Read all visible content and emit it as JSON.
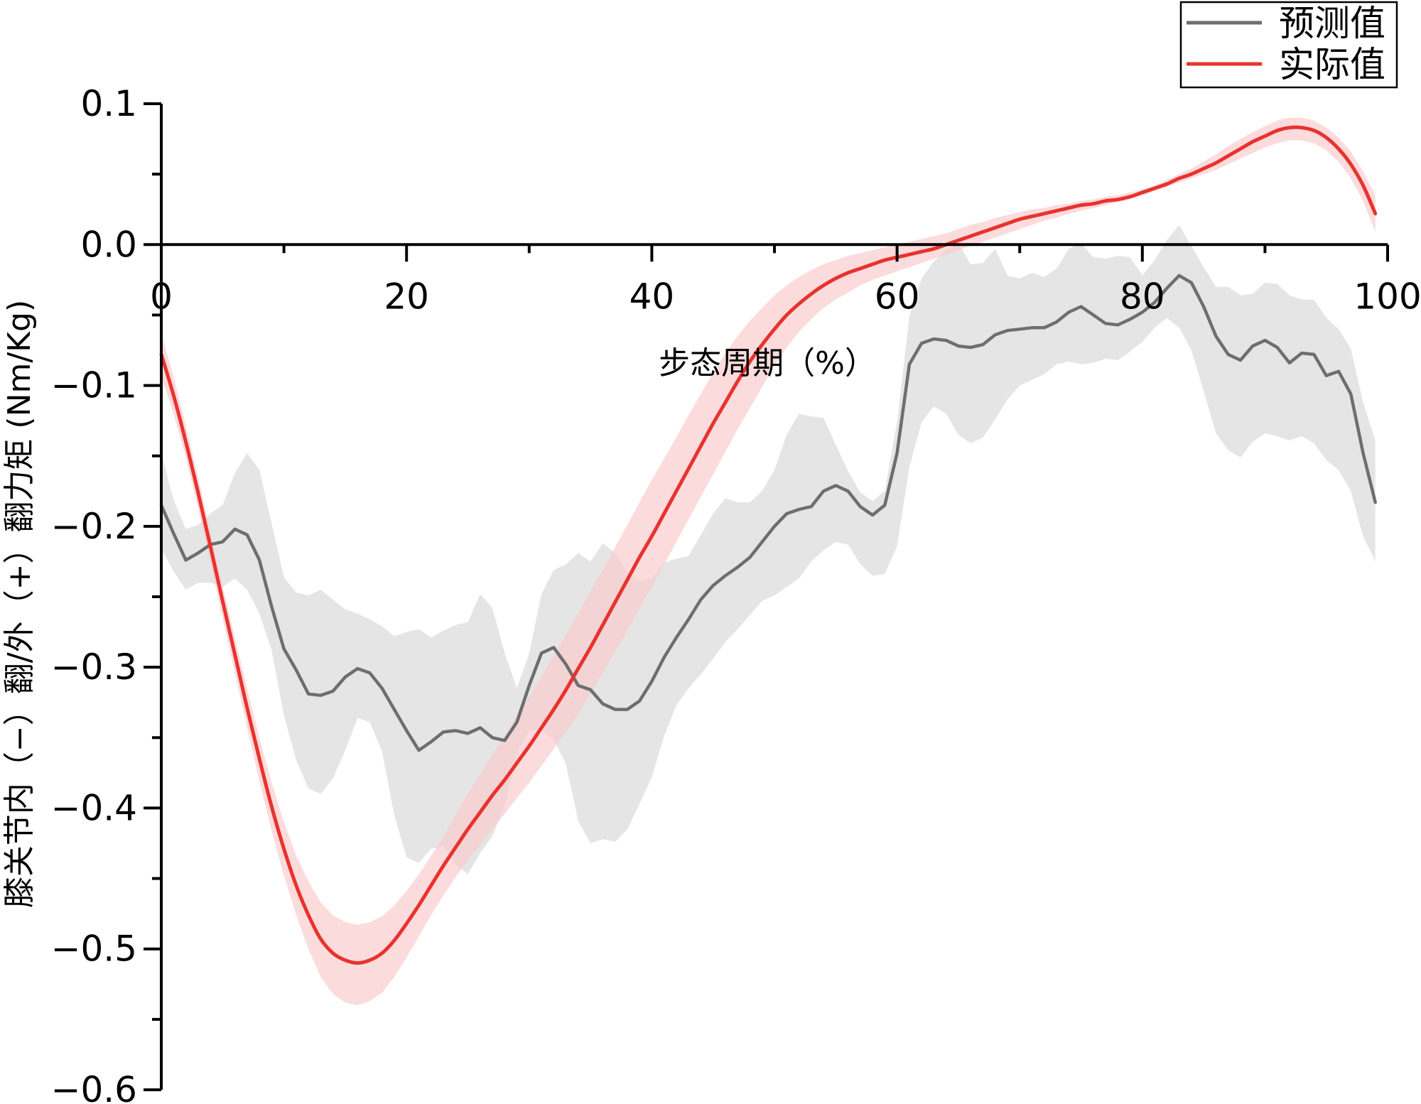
{
  "chart_data": {
    "type": "line",
    "xlabel": "步态周期（%）",
    "ylabel": "膝关节内（−）翻/外（+）翻力矩 (Nm/Kg)",
    "xlim": [
      0,
      100
    ],
    "ylim": [
      -0.6,
      0.1
    ],
    "xticks": [
      0,
      20,
      40,
      60,
      80,
      100
    ],
    "xtick_labels": [
      "0",
      "20",
      "40",
      "60",
      "80",
      "100"
    ],
    "yticks": [
      0.1,
      0.0,
      -0.1,
      -0.2,
      -0.3,
      -0.4,
      -0.5,
      -0.6
    ],
    "ytick_labels": [
      "0.1",
      "0.0",
      "−0.1",
      "−0.2",
      "−0.3",
      "−0.4",
      "−0.5",
      "−0.6"
    ],
    "grid": false,
    "legend_position": "top-right",
    "series": [
      {
        "name": "预测值",
        "color": "#6e6e6e",
        "band_color": "#dcdcdc",
        "x": [
          0,
          1,
          2,
          3,
          4,
          5,
          6,
          7,
          8,
          9,
          10,
          11,
          12,
          13,
          14,
          15,
          16,
          17,
          18,
          19,
          20,
          21,
          22,
          23,
          24,
          25,
          26,
          27,
          28,
          29,
          30,
          31,
          32,
          33,
          34,
          35,
          36,
          37,
          38,
          39,
          40,
          41,
          42,
          43,
          44,
          45,
          46,
          47,
          48,
          49,
          50,
          51,
          52,
          53,
          54,
          55,
          56,
          57,
          58,
          59,
          60,
          61,
          62,
          63,
          64,
          65,
          66,
          67,
          68,
          69,
          70,
          71,
          72,
          73,
          74,
          75,
          76,
          77,
          78,
          79,
          80,
          81,
          82,
          83,
          84,
          85,
          86,
          87,
          88,
          89,
          90,
          91,
          92,
          93,
          94,
          95,
          96,
          97,
          98,
          99
        ],
        "values": [
          -0.185,
          -0.205,
          -0.224,
          -0.219,
          -0.213,
          -0.211,
          -0.202,
          -0.206,
          -0.224,
          -0.257,
          -0.287,
          -0.302,
          -0.319,
          -0.32,
          -0.317,
          -0.307,
          -0.301,
          -0.304,
          -0.315,
          -0.33,
          -0.345,
          -0.359,
          -0.353,
          -0.346,
          -0.345,
          -0.347,
          -0.343,
          -0.35,
          -0.352,
          -0.339,
          -0.313,
          -0.29,
          -0.286,
          -0.298,
          -0.313,
          -0.316,
          -0.326,
          -0.33,
          -0.33,
          -0.324,
          -0.31,
          -0.293,
          -0.279,
          -0.266,
          -0.252,
          -0.242,
          -0.235,
          -0.229,
          -0.222,
          -0.211,
          -0.2,
          -0.191,
          -0.188,
          -0.186,
          -0.175,
          -0.171,
          -0.175,
          -0.186,
          -0.192,
          -0.185,
          -0.148,
          -0.085,
          -0.07,
          -0.067,
          -0.068,
          -0.072,
          -0.073,
          -0.071,
          -0.064,
          -0.061,
          -0.06,
          -0.059,
          -0.059,
          -0.055,
          -0.048,
          -0.044,
          -0.05,
          -0.056,
          -0.057,
          -0.053,
          -0.048,
          -0.041,
          -0.031,
          -0.022,
          -0.027,
          -0.044,
          -0.065,
          -0.078,
          -0.082,
          -0.072,
          -0.068,
          -0.073,
          -0.084,
          -0.077,
          -0.078,
          -0.093,
          -0.09,
          -0.106,
          -0.148,
          -0.183
        ],
        "upper": [
          -0.148,
          -0.181,
          -0.202,
          -0.199,
          -0.191,
          -0.185,
          -0.162,
          -0.148,
          -0.16,
          -0.198,
          -0.236,
          -0.247,
          -0.249,
          -0.245,
          -0.252,
          -0.259,
          -0.262,
          -0.266,
          -0.271,
          -0.278,
          -0.275,
          -0.273,
          -0.279,
          -0.274,
          -0.27,
          -0.268,
          -0.248,
          -0.258,
          -0.29,
          -0.315,
          -0.29,
          -0.248,
          -0.231,
          -0.227,
          -0.219,
          -0.225,
          -0.212,
          -0.219,
          -0.233,
          -0.239,
          -0.237,
          -0.226,
          -0.223,
          -0.221,
          -0.206,
          -0.191,
          -0.18,
          -0.183,
          -0.183,
          -0.175,
          -0.16,
          -0.135,
          -0.12,
          -0.122,
          -0.123,
          -0.142,
          -0.161,
          -0.176,
          -0.182,
          -0.175,
          -0.126,
          -0.051,
          -0.024,
          -0.012,
          -0.004,
          0.001,
          -0.014,
          -0.013,
          -0.003,
          -0.022,
          -0.024,
          -0.02,
          -0.023,
          -0.017,
          -0.003,
          0.001,
          -0.009,
          -0.01,
          -0.008,
          -0.009,
          -0.022,
          -0.011,
          0.003,
          0.014,
          -0.001,
          -0.016,
          -0.03,
          -0.03,
          -0.036,
          -0.035,
          -0.027,
          -0.028,
          -0.036,
          -0.039,
          -0.039,
          -0.052,
          -0.06,
          -0.074,
          -0.112,
          -0.139
        ],
        "lower": [
          -0.216,
          -0.232,
          -0.245,
          -0.24,
          -0.24,
          -0.243,
          -0.237,
          -0.245,
          -0.262,
          -0.288,
          -0.334,
          -0.366,
          -0.386,
          -0.39,
          -0.379,
          -0.359,
          -0.336,
          -0.339,
          -0.36,
          -0.405,
          -0.435,
          -0.439,
          -0.429,
          -0.427,
          -0.44,
          -0.447,
          -0.432,
          -0.42,
          -0.399,
          -0.361,
          -0.345,
          -0.345,
          -0.351,
          -0.369,
          -0.409,
          -0.425,
          -0.422,
          -0.424,
          -0.415,
          -0.397,
          -0.378,
          -0.349,
          -0.327,
          -0.315,
          -0.305,
          -0.294,
          -0.282,
          -0.273,
          -0.263,
          -0.253,
          -0.249,
          -0.243,
          -0.237,
          -0.225,
          -0.217,
          -0.211,
          -0.213,
          -0.227,
          -0.235,
          -0.234,
          -0.214,
          -0.158,
          -0.126,
          -0.115,
          -0.12,
          -0.135,
          -0.141,
          -0.137,
          -0.124,
          -0.11,
          -0.1,
          -0.096,
          -0.092,
          -0.085,
          -0.083,
          -0.085,
          -0.084,
          -0.081,
          -0.082,
          -0.076,
          -0.069,
          -0.059,
          -0.052,
          -0.059,
          -0.075,
          -0.104,
          -0.134,
          -0.146,
          -0.151,
          -0.14,
          -0.134,
          -0.136,
          -0.139,
          -0.136,
          -0.141,
          -0.153,
          -0.16,
          -0.175,
          -0.207,
          -0.225
        ]
      },
      {
        "name": "实际值",
        "color": "#e8322f",
        "band_color": "#f9cccc",
        "x": [
          0,
          1,
          2,
          3,
          4,
          5,
          6,
          7,
          8,
          9,
          10,
          11,
          12,
          13,
          14,
          15,
          16,
          17,
          18,
          19,
          20,
          21,
          22,
          23,
          24,
          25,
          26,
          27,
          28,
          29,
          30,
          31,
          32,
          33,
          34,
          35,
          36,
          37,
          38,
          39,
          40,
          41,
          42,
          43,
          44,
          45,
          46,
          47,
          48,
          49,
          50,
          51,
          52,
          53,
          54,
          55,
          56,
          57,
          58,
          59,
          60,
          61,
          62,
          63,
          64,
          65,
          66,
          67,
          68,
          69,
          70,
          71,
          72,
          73,
          74,
          75,
          76,
          77,
          78,
          79,
          80,
          81,
          82,
          83,
          84,
          85,
          86,
          87,
          88,
          89,
          90,
          91,
          92,
          93,
          94,
          95,
          96,
          97,
          98,
          99
        ],
        "values": [
          -0.078,
          -0.107,
          -0.14,
          -0.176,
          -0.214,
          -0.253,
          -0.291,
          -0.329,
          -0.365,
          -0.399,
          -0.429,
          -0.455,
          -0.476,
          -0.493,
          -0.503,
          -0.508,
          -0.51,
          -0.508,
          -0.503,
          -0.494,
          -0.482,
          -0.469,
          -0.455,
          -0.441,
          -0.428,
          -0.415,
          -0.403,
          -0.391,
          -0.38,
          -0.368,
          -0.356,
          -0.343,
          -0.33,
          -0.316,
          -0.301,
          -0.286,
          -0.27,
          -0.254,
          -0.238,
          -0.222,
          -0.207,
          -0.191,
          -0.175,
          -0.159,
          -0.143,
          -0.127,
          -0.112,
          -0.097,
          -0.083,
          -0.071,
          -0.06,
          -0.05,
          -0.042,
          -0.035,
          -0.029,
          -0.024,
          -0.02,
          -0.017,
          -0.014,
          -0.011,
          -0.009,
          -0.007,
          -0.005,
          -0.003,
          0.0,
          0.003,
          0.006,
          0.009,
          0.012,
          0.015,
          0.018,
          0.02,
          0.022,
          0.024,
          0.026,
          0.028,
          0.029,
          0.031,
          0.032,
          0.034,
          0.037,
          0.04,
          0.043,
          0.047,
          0.05,
          0.054,
          0.058,
          0.063,
          0.068,
          0.073,
          0.077,
          0.081,
          0.083,
          0.083,
          0.081,
          0.076,
          0.068,
          0.057,
          0.042,
          0.022
        ],
        "upper": [
          -0.063,
          -0.094,
          -0.128,
          -0.165,
          -0.203,
          -0.242,
          -0.279,
          -0.315,
          -0.35,
          -0.382,
          -0.41,
          -0.434,
          -0.452,
          -0.467,
          -0.476,
          -0.481,
          -0.483,
          -0.481,
          -0.477,
          -0.469,
          -0.459,
          -0.447,
          -0.434,
          -0.42,
          -0.405,
          -0.39,
          -0.376,
          -0.362,
          -0.349,
          -0.335,
          -0.321,
          -0.307,
          -0.292,
          -0.277,
          -0.262,
          -0.246,
          -0.231,
          -0.215,
          -0.199,
          -0.183,
          -0.167,
          -0.152,
          -0.137,
          -0.121,
          -0.106,
          -0.091,
          -0.077,
          -0.065,
          -0.054,
          -0.045,
          -0.036,
          -0.029,
          -0.023,
          -0.018,
          -0.014,
          -0.011,
          -0.008,
          -0.006,
          -0.004,
          -0.002,
          0.0,
          0.002,
          0.004,
          0.006,
          0.008,
          0.011,
          0.014,
          0.016,
          0.019,
          0.021,
          0.023,
          0.025,
          0.026,
          0.028,
          0.029,
          0.031,
          0.032,
          0.034,
          0.035,
          0.037,
          0.039,
          0.042,
          0.046,
          0.05,
          0.054,
          0.059,
          0.064,
          0.07,
          0.075,
          0.08,
          0.084,
          0.088,
          0.09,
          0.09,
          0.088,
          0.083,
          0.076,
          0.066,
          0.052,
          0.035
        ],
        "lower": [
          -0.094,
          -0.12,
          -0.151,
          -0.187,
          -0.226,
          -0.265,
          -0.304,
          -0.343,
          -0.381,
          -0.416,
          -0.448,
          -0.476,
          -0.5,
          -0.52,
          -0.532,
          -0.538,
          -0.54,
          -0.537,
          -0.531,
          -0.52,
          -0.506,
          -0.491,
          -0.476,
          -0.462,
          -0.449,
          -0.437,
          -0.426,
          -0.415,
          -0.404,
          -0.393,
          -0.382,
          -0.37,
          -0.358,
          -0.346,
          -0.333,
          -0.319,
          -0.304,
          -0.289,
          -0.274,
          -0.258,
          -0.243,
          -0.227,
          -0.211,
          -0.195,
          -0.179,
          -0.163,
          -0.147,
          -0.131,
          -0.116,
          -0.101,
          -0.086,
          -0.073,
          -0.062,
          -0.053,
          -0.045,
          -0.039,
          -0.034,
          -0.029,
          -0.025,
          -0.022,
          -0.019,
          -0.016,
          -0.013,
          -0.01,
          -0.007,
          -0.004,
          -0.001,
          0.002,
          0.005,
          0.008,
          0.011,
          0.014,
          0.017,
          0.019,
          0.022,
          0.024,
          0.026,
          0.028,
          0.03,
          0.032,
          0.035,
          0.038,
          0.041,
          0.044,
          0.047,
          0.05,
          0.053,
          0.057,
          0.061,
          0.065,
          0.069,
          0.072,
          0.074,
          0.074,
          0.072,
          0.067,
          0.059,
          0.047,
          0.031,
          0.009
        ]
      }
    ]
  }
}
